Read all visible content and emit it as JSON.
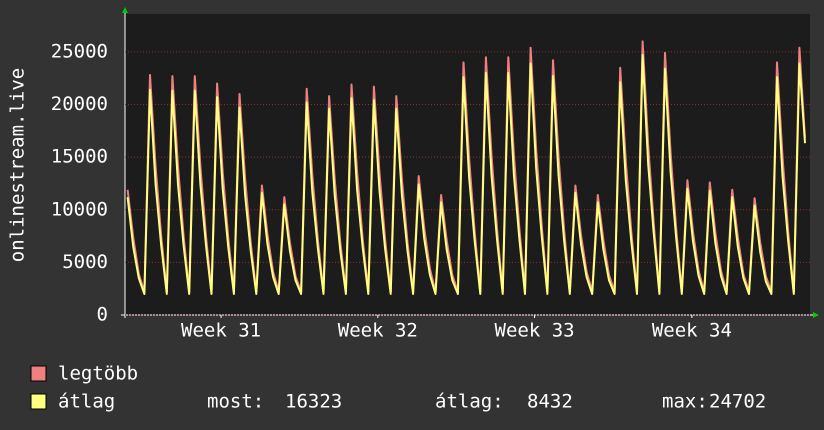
{
  "chart_data": {
    "type": "line",
    "y_label": "onlinestream.live",
    "ylim": [
      0,
      28600
    ],
    "yticks": [
      0,
      5000,
      10000,
      15000,
      20000,
      25000
    ],
    "xlim": [
      -0.46,
      121.9
    ],
    "xticks": [
      {
        "value": 16.7,
        "label": "Week 31"
      },
      {
        "value": 44.7,
        "label": "Week 32"
      },
      {
        "value": 72.7,
        "label": "Week 33"
      },
      {
        "value": 100.8,
        "label": "Week 34"
      }
    ],
    "grid": true,
    "series": [
      {
        "name": "legtöbb",
        "color": "#f08080",
        "values": [
          11900,
          7400,
          3900,
          2200,
          22800,
          14100,
          7500,
          2200,
          22700,
          14100,
          7500,
          2200,
          22700,
          14100,
          7500,
          2200,
          22000,
          13600,
          7300,
          2200,
          21000,
          13000,
          6900,
          2200,
          12300,
          7600,
          4100,
          2200,
          11200,
          6900,
          3700,
          2200,
          21500,
          13300,
          7100,
          2200,
          20800,
          12900,
          6900,
          2200,
          21900,
          13600,
          7200,
          2200,
          21700,
          13500,
          7200,
          2200,
          20800,
          12900,
          6900,
          2200,
          13200,
          8200,
          4400,
          2200,
          11400,
          7100,
          3800,
          2200,
          24000,
          14900,
          7900,
          2200,
          24500,
          15200,
          8100,
          2200,
          24500,
          15200,
          8100,
          2200,
          25400,
          15700,
          8400,
          2200,
          24200,
          15000,
          8000,
          2200,
          12300,
          7600,
          4100,
          2200,
          11400,
          7100,
          3800,
          2200,
          23500,
          14600,
          7800,
          2200,
          26000,
          16100,
          8600,
          2200,
          24900,
          15400,
          8200,
          2200,
          12800,
          7900,
          4200,
          2200,
          12600,
          7800,
          4200,
          2200,
          11900,
          7400,
          3900,
          2200,
          11100,
          6900,
          3700,
          2200,
          24000,
          14900,
          7900,
          2200,
          25400,
          16800
        ]
      },
      {
        "name": "átlag",
        "color": "#ffff80",
        "values": [
          11200,
          6500,
          3500,
          2000,
          21400,
          12400,
          6600,
          2000,
          21300,
          12400,
          6600,
          2000,
          21300,
          12400,
          6600,
          2000,
          20700,
          12000,
          6400,
          2000,
          19700,
          11400,
          6100,
          2000,
          11600,
          6700,
          3600,
          2000,
          10500,
          6100,
          3300,
          2000,
          20200,
          11700,
          6300,
          2000,
          19600,
          11400,
          6100,
          2000,
          20600,
          11900,
          6400,
          2000,
          20400,
          11800,
          6300,
          2000,
          19600,
          11400,
          6100,
          2000,
          12400,
          7200,
          3800,
          2000,
          10700,
          6200,
          3300,
          2000,
          22600,
          13100,
          7000,
          2000,
          23000,
          13300,
          7100,
          2000,
          23000,
          13300,
          7100,
          2000,
          23900,
          13900,
          7400,
          2000,
          22700,
          13200,
          7000,
          2000,
          11600,
          6700,
          3600,
          2000,
          10700,
          6200,
          3300,
          2000,
          22100,
          12800,
          6900,
          2000,
          24700,
          14300,
          7700,
          2000,
          23400,
          13600,
          7300,
          2000,
          12000,
          7000,
          3700,
          2000,
          11800,
          6800,
          3700,
          2000,
          11200,
          6500,
          3500,
          2000,
          10400,
          6000,
          3200,
          2000,
          22600,
          13100,
          7000,
          2000,
          23900,
          16323
        ]
      }
    ],
    "stats": [
      {
        "label": "most:",
        "value": 16323
      },
      {
        "label": "átlag:",
        "value": 8432
      },
      {
        "label": "max:",
        "value": 24702
      }
    ]
  }
}
